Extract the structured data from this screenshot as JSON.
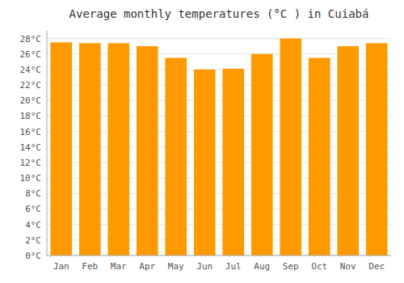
{
  "chart_data": {
    "type": "bar",
    "title": "Average monthly temperatures (°C ) in Cuiabá",
    "categories": [
      "Jan",
      "Feb",
      "Mar",
      "Apr",
      "May",
      "Jun",
      "Jul",
      "Aug",
      "Sep",
      "Oct",
      "Nov",
      "Dec"
    ],
    "values": [
      27.5,
      27.4,
      27.4,
      27.0,
      25.5,
      24.0,
      24.1,
      26.0,
      28.0,
      25.5,
      27.0,
      27.4
    ],
    "color": "#FF9900",
    "ylim": [
      0,
      29
    ],
    "yticks": [
      {
        "value": 0,
        "label": "0°C"
      },
      {
        "value": 2,
        "label": "2°C"
      },
      {
        "value": 4,
        "label": "4°C"
      },
      {
        "value": 6,
        "label": "6°C"
      },
      {
        "value": 8,
        "label": "8°C"
      },
      {
        "value": 10,
        "label": "10°C"
      },
      {
        "value": 12,
        "label": "12°C"
      },
      {
        "value": 14,
        "label": "14°C"
      },
      {
        "value": 16,
        "label": "16°C"
      },
      {
        "value": 18,
        "label": "18°C"
      },
      {
        "value": 20,
        "label": "20°C"
      },
      {
        "value": 22,
        "label": "22°C"
      },
      {
        "value": 24,
        "label": "24°C"
      },
      {
        "value": 26,
        "label": "26°C"
      },
      {
        "value": 28,
        "label": "28°C"
      }
    ],
    "grid": true
  }
}
